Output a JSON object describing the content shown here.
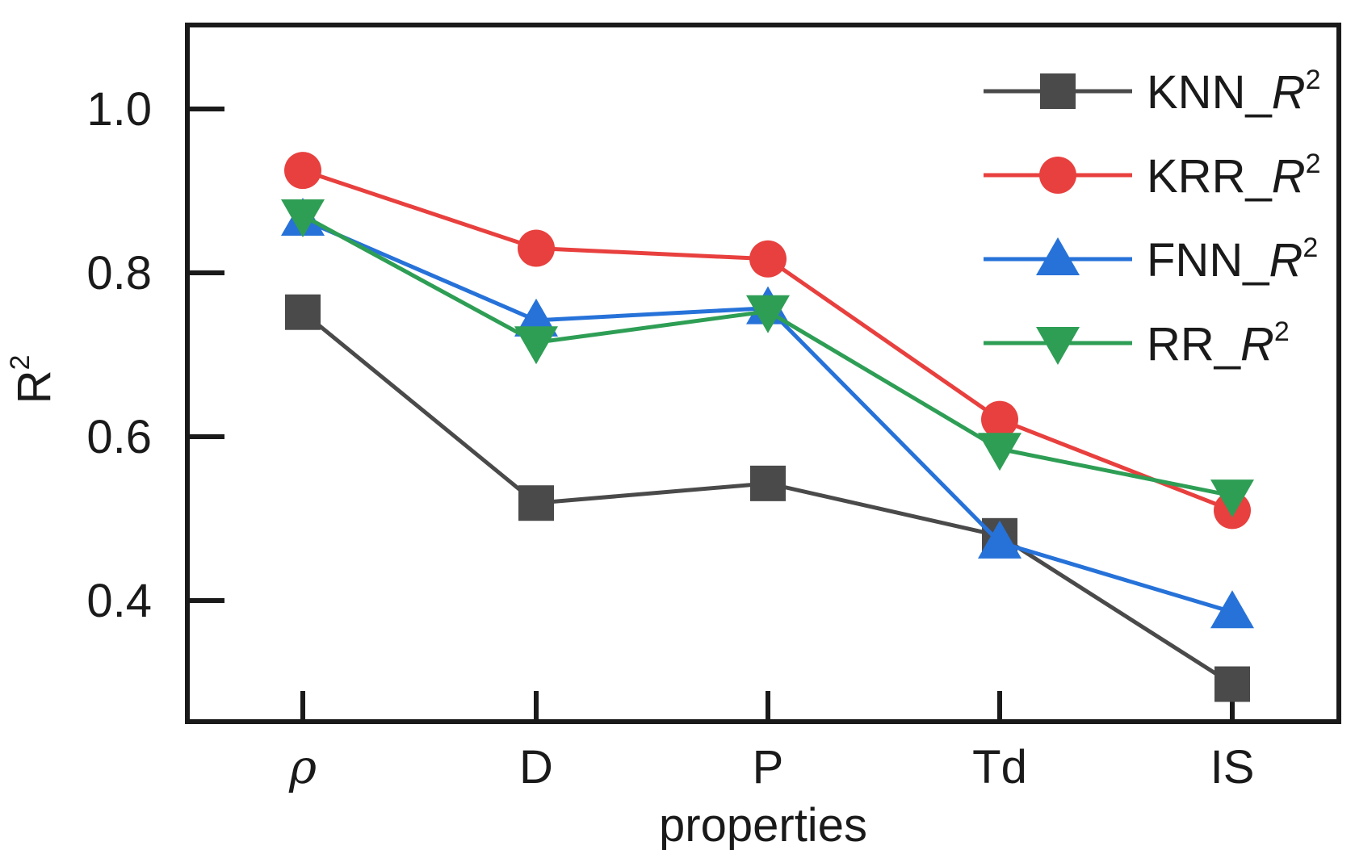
{
  "chart_data": {
    "type": "line",
    "title": "",
    "xlabel": "properties",
    "ylabel": {
      "base": "R",
      "sup": "2"
    },
    "categories": [
      "ρ",
      "D",
      "P",
      "Td",
      "IS"
    ],
    "yticks": [
      "0.4",
      "0.6",
      "0.8",
      "1.0"
    ],
    "ylim": [
      0.28,
      1.1
    ],
    "grid": false,
    "legend_position": "top-right",
    "series": [
      {
        "name": "KNN_",
        "name_italic": "R",
        "name_sup": "2",
        "marker": "square",
        "color": "#4a4a4a",
        "values": [
          0.752,
          0.519,
          0.543,
          0.479,
          0.298
        ]
      },
      {
        "name": "KRR_",
        "name_italic": "R",
        "name_sup": "2",
        "marker": "circle",
        "color": "#e8403e",
        "values": [
          0.925,
          0.83,
          0.817,
          0.621,
          0.51
        ]
      },
      {
        "name": "FNN_",
        "name_italic": "R",
        "name_sup": "2",
        "marker": "triangle-up",
        "color": "#2672d9",
        "values": [
          0.865,
          0.742,
          0.757,
          0.471,
          0.386
        ]
      },
      {
        "name": "RR_",
        "name_italic": "R",
        "name_sup": "2",
        "marker": "triangle-down",
        "color": "#2e9e55",
        "values": [
          0.87,
          0.715,
          0.753,
          0.585,
          0.528
        ]
      }
    ]
  }
}
